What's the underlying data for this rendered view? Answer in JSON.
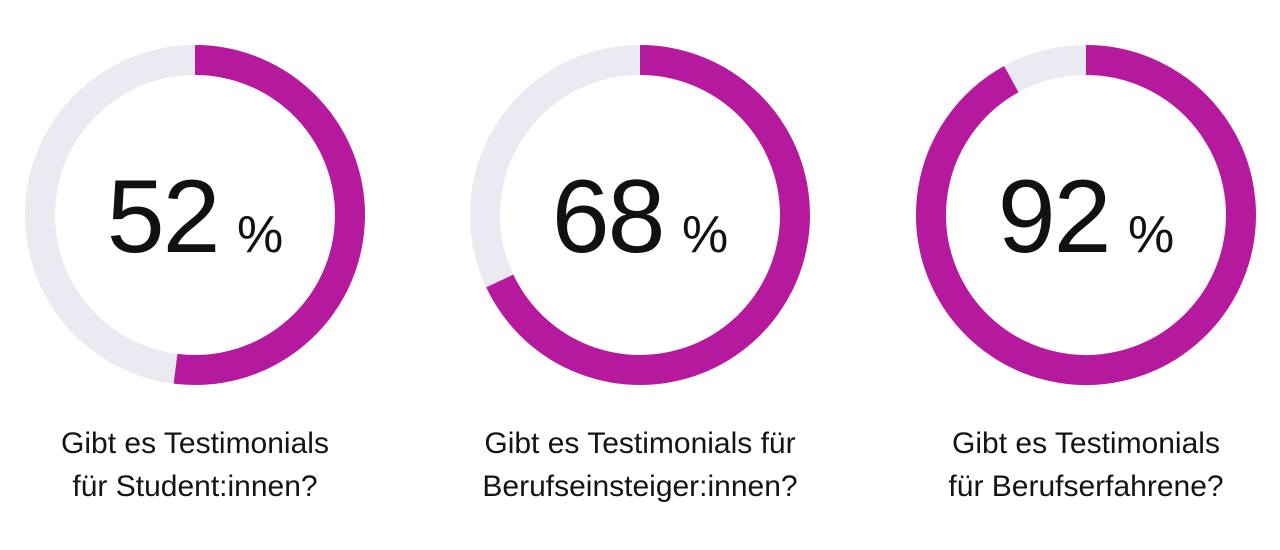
{
  "colors": {
    "accent": "#b5199e",
    "track": "#ebe9f2",
    "text": "#111111"
  },
  "chart_data": [
    {
      "type": "pie",
      "variant": "donut",
      "value": 52,
      "unit": "%",
      "label": "52",
      "caption_lines": [
        "Gibt es Testimonials",
        "für Student:innen?"
      ]
    },
    {
      "type": "pie",
      "variant": "donut",
      "value": 68,
      "unit": "%",
      "label": "68",
      "caption_lines": [
        "Gibt es Testimonials für",
        "Berufseinsteiger:innen?"
      ]
    },
    {
      "type": "pie",
      "variant": "donut",
      "value": 92,
      "unit": "%",
      "label": "92",
      "caption_lines": [
        "Gibt es Testimonials",
        "für Berufserfahrene?"
      ]
    }
  ]
}
